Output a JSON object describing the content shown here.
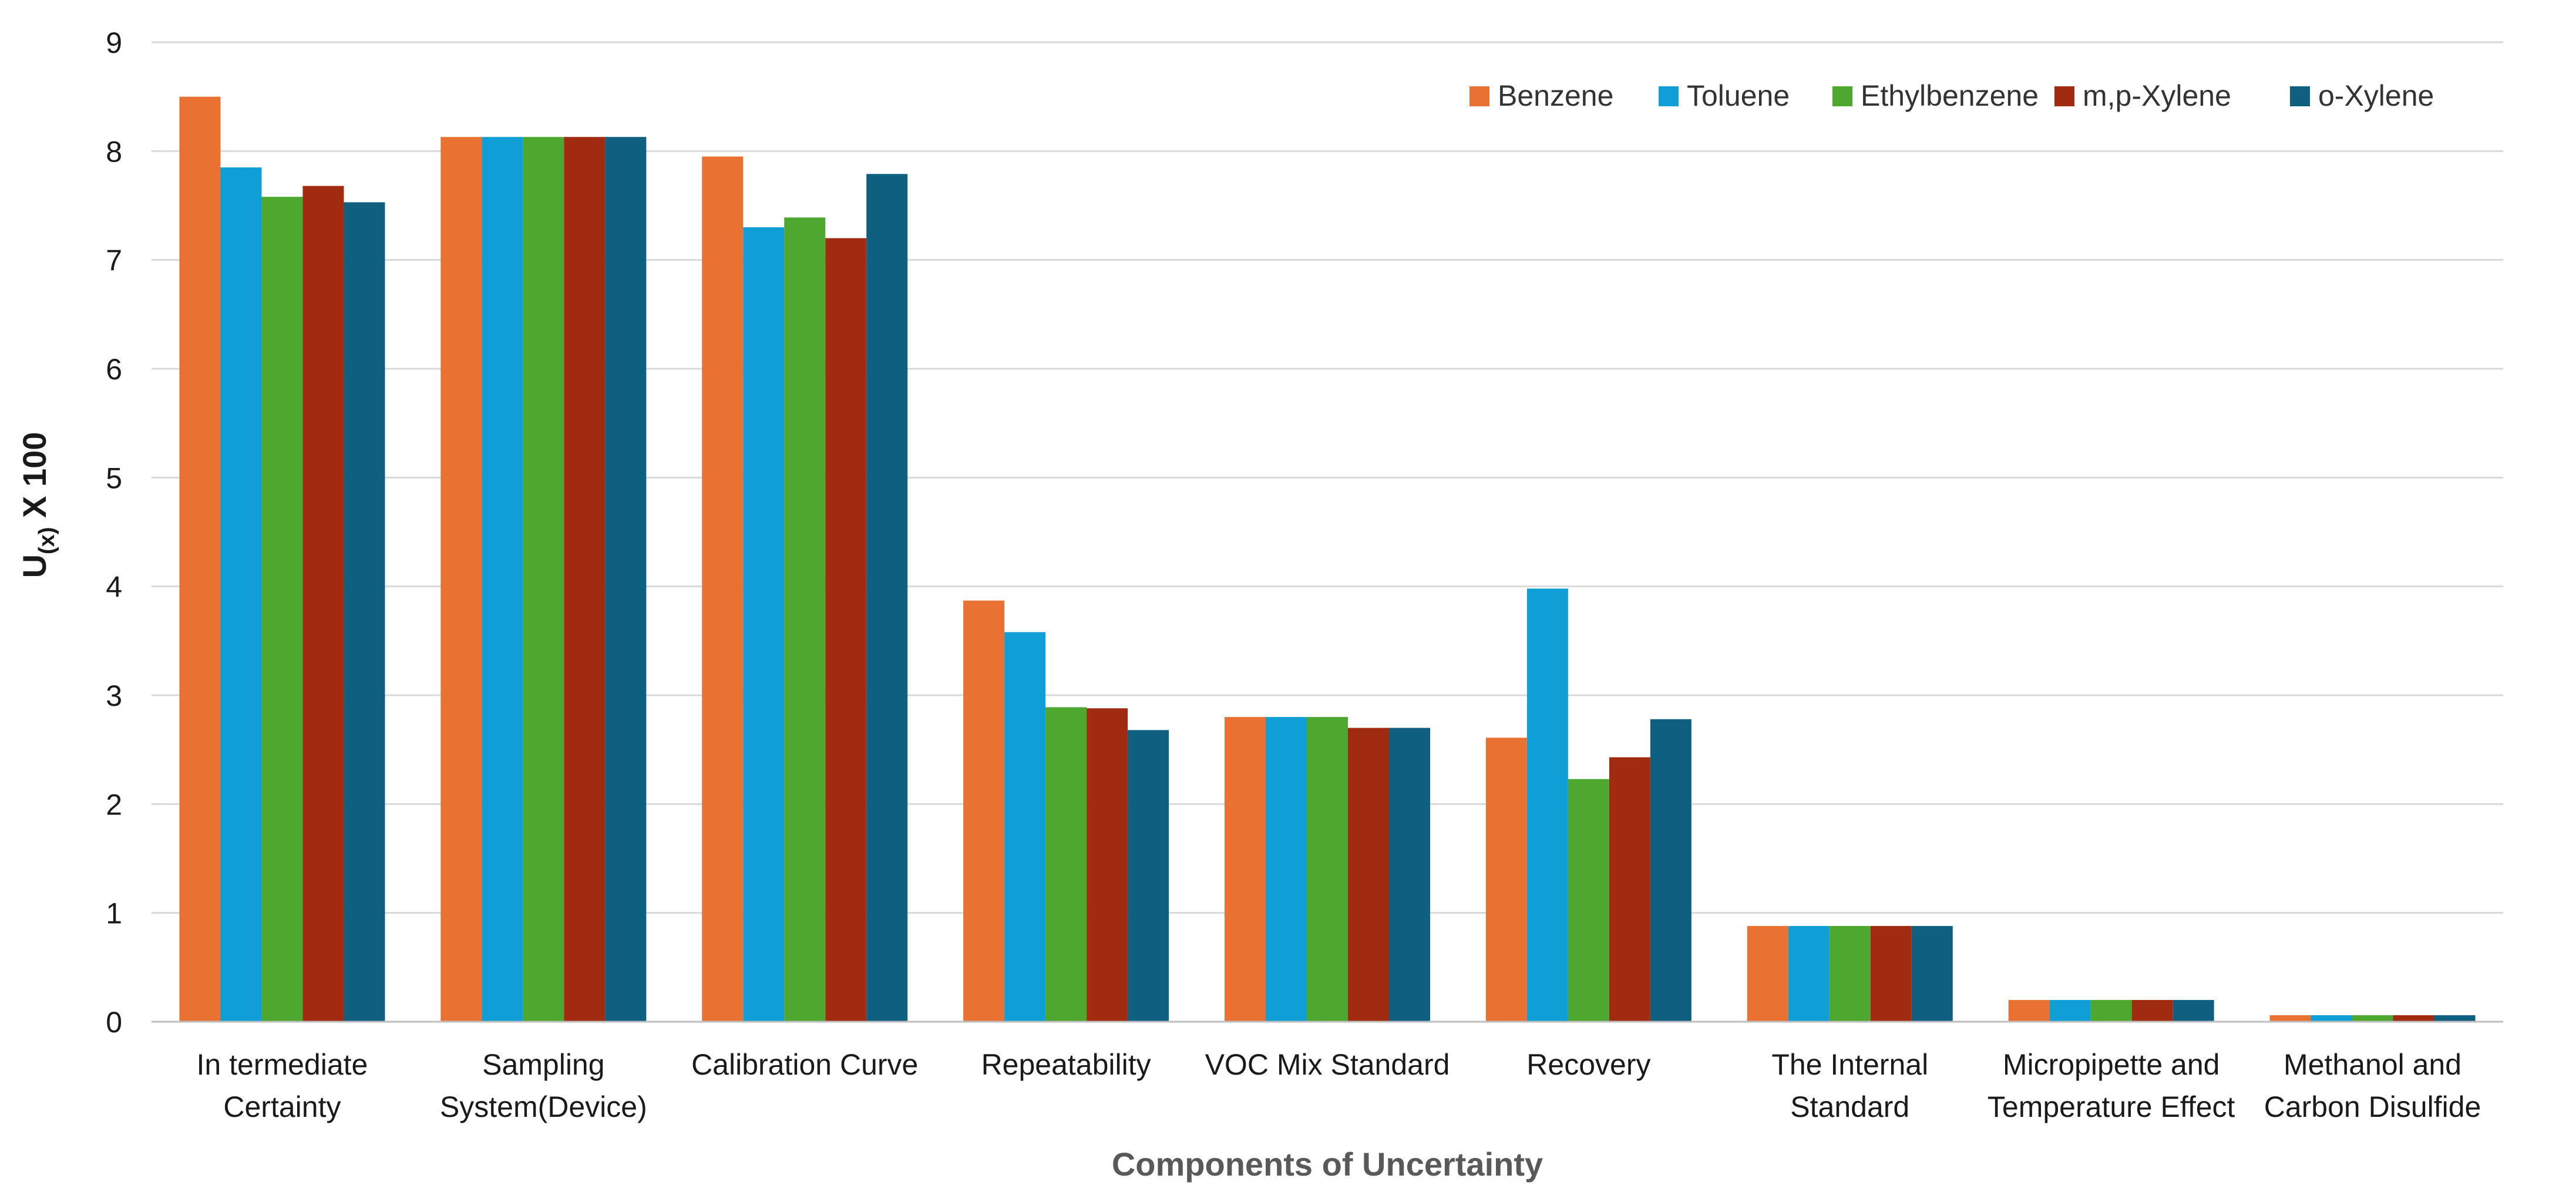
{
  "chart_data": {
    "type": "bar",
    "title": "",
    "xlabel": "Components of Uncertainty",
    "ylabel": "U(x) X 100",
    "ylabel_parts": {
      "main": "U",
      "subscript": "(x)",
      "suffix": " X 100"
    },
    "ylim": [
      0,
      9
    ],
    "yticks": [
      0,
      1,
      2,
      3,
      4,
      5,
      6,
      7,
      8,
      9
    ],
    "grid": true,
    "legend_position": "top-right",
    "categories": [
      "In termediate Certainty",
      "Sampling System(Device)",
      "Calibration Curve",
      "Repeatability",
      "VOC Mix Standard",
      "Recovery",
      "The Internal Standard",
      "Micropipette and Temperature Effect",
      "Methanol and Carbon Disulfide"
    ],
    "category_label_lines": [
      [
        "In termediate",
        "Certainty"
      ],
      [
        "Sampling",
        "System(Device)"
      ],
      [
        "Calibration Curve"
      ],
      [
        "Repeatability"
      ],
      [
        "VOC Mix Standard"
      ],
      [
        "Recovery"
      ],
      [
        "The Internal",
        "Standard"
      ],
      [
        "Micropipette and",
        "Temperature Effect"
      ],
      [
        "Methanol and",
        "Carbon Disulfide"
      ]
    ],
    "series": [
      {
        "name": "Benzene",
        "color": "#E97132",
        "values": [
          8.5,
          8.13,
          7.95,
          3.87,
          2.8,
          2.61,
          0.88,
          0.2,
          0.06
        ]
      },
      {
        "name": "Toluene",
        "color": "#0F9ED5",
        "values": [
          7.85,
          8.13,
          7.3,
          3.58,
          2.8,
          3.98,
          0.88,
          0.2,
          0.06
        ]
      },
      {
        "name": "Ethylbenzene",
        "color": "#4EA72E",
        "values": [
          7.58,
          8.13,
          7.39,
          2.89,
          2.8,
          2.23,
          0.88,
          0.2,
          0.06
        ]
      },
      {
        "name": "m,p-Xylene",
        "color": "#A02B10",
        "values": [
          7.68,
          8.13,
          7.2,
          2.88,
          2.7,
          2.43,
          0.88,
          0.2,
          0.06
        ]
      },
      {
        "name": "o-Xylene",
        "color": "#0F6080",
        "values": [
          7.53,
          8.13,
          7.79,
          2.68,
          2.7,
          2.78,
          0.88,
          0.2,
          0.06
        ]
      }
    ]
  }
}
